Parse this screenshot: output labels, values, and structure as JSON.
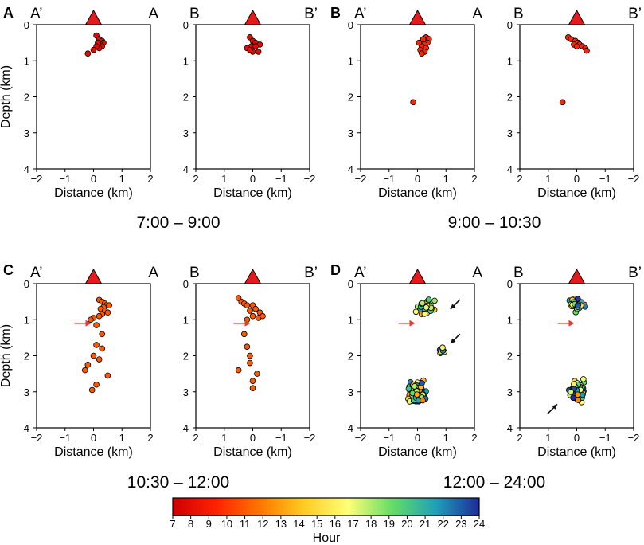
{
  "figure": {
    "colorbar": {
      "label": "Hour",
      "ticks": [
        "7",
        "8",
        "9",
        "10",
        "11",
        "12",
        "13",
        "14",
        "15",
        "16",
        "17",
        "18",
        "19",
        "20",
        "21",
        "22",
        "23",
        "24"
      ],
      "min": 7,
      "max": 24,
      "colors": [
        "#cc0000",
        "#ff2200",
        "#ff7700",
        "#ffcc22",
        "#ffff77",
        "#66dd66",
        "#1fa1b8",
        "#1e2a9a"
      ]
    },
    "marker_colors": {
      "early": "#cc2222",
      "mid": "#e37222",
      "arrow_red": "#e53b2a",
      "arrow_black": "#111111",
      "volcano": "#e41a1c"
    },
    "panels": [
      {
        "label": "A",
        "time_label": "7:00 – 9:00"
      },
      {
        "label": "B",
        "time_label": "9:00 – 10:30"
      },
      {
        "label": "C",
        "time_label": "10:30 – 12:00"
      },
      {
        "label": "D",
        "time_label": "12:00 – 24:00"
      }
    ],
    "sections": {
      "left": {
        "left": "A’",
        "right": "A",
        "xticks": [
          "−2",
          "−1",
          "0",
          "1",
          "2"
        ]
      },
      "right": {
        "left": "B",
        "right": "B’",
        "xticks": [
          "2",
          "1",
          "0",
          "−1",
          "−2"
        ]
      }
    },
    "yticks": [
      "0",
      "1",
      "2",
      "3",
      "4"
    ],
    "xlabel": "Distance (km)",
    "ylabel": "Depth (km)"
  },
  "chart_data": {
    "type": "scatter",
    "x_unit": "km (distance along profile)",
    "y_unit": "km (depth)",
    "xlim": [
      -2,
      2
    ],
    "ylim": [
      0,
      4
    ],
    "color_variable": "hour of day (7–24)",
    "subplots": [
      {
        "panel": "A",
        "section": "A’-A",
        "hour": 8,
        "points": [
          [
            0.1,
            0.3
          ],
          [
            0.2,
            0.4
          ],
          [
            0.3,
            0.45
          ],
          [
            0.35,
            0.5
          ],
          [
            0.25,
            0.55
          ],
          [
            0.15,
            0.5
          ],
          [
            0.3,
            0.6
          ],
          [
            0.2,
            0.65
          ],
          [
            0.1,
            0.6
          ],
          [
            0.0,
            0.7
          ],
          [
            -0.2,
            0.8
          ]
        ]
      },
      {
        "panel": "A",
        "section": "B-B’",
        "hour": 8,
        "points": [
          [
            0.1,
            0.35
          ],
          [
            0.0,
            0.45
          ],
          [
            -0.1,
            0.5
          ],
          [
            -0.25,
            0.55
          ],
          [
            0.05,
            0.6
          ],
          [
            -0.1,
            0.6
          ],
          [
            0.2,
            0.65
          ],
          [
            0.0,
            0.75
          ],
          [
            -0.2,
            0.75
          ],
          [
            0.1,
            0.7
          ]
        ]
      },
      {
        "panel": "B",
        "section": "A’-A",
        "hour": 9.5,
        "points": [
          [
            0.3,
            0.35
          ],
          [
            0.4,
            0.4
          ],
          [
            0.2,
            0.45
          ],
          [
            0.35,
            0.5
          ],
          [
            0.25,
            0.55
          ],
          [
            0.15,
            0.6
          ],
          [
            0.3,
            0.65
          ],
          [
            0.1,
            0.7
          ],
          [
            0.25,
            0.75
          ],
          [
            0.15,
            0.8
          ],
          [
            0.05,
            0.5
          ],
          [
            0.2,
            0.4
          ],
          [
            -0.15,
            2.15
          ]
        ]
      },
      {
        "panel": "B",
        "section": "B-B’",
        "hour": 9.5,
        "points": [
          [
            0.3,
            0.35
          ],
          [
            0.2,
            0.4
          ],
          [
            0.05,
            0.45
          ],
          [
            -0.05,
            0.5
          ],
          [
            -0.1,
            0.55
          ],
          [
            -0.2,
            0.6
          ],
          [
            -0.3,
            0.65
          ],
          [
            -0.35,
            0.72
          ],
          [
            0.1,
            0.55
          ],
          [
            0.0,
            0.6
          ],
          [
            0.5,
            2.15
          ]
        ]
      },
      {
        "panel": "C",
        "section": "A’-A",
        "hour": 11,
        "points": [
          [
            0.2,
            0.45
          ],
          [
            0.3,
            0.5
          ],
          [
            0.4,
            0.55
          ],
          [
            0.45,
            0.6
          ],
          [
            0.35,
            0.65
          ],
          [
            0.55,
            0.6
          ],
          [
            0.25,
            0.7
          ],
          [
            0.4,
            0.75
          ],
          [
            0.5,
            0.8
          ],
          [
            0.3,
            0.85
          ],
          [
            0.2,
            0.9
          ],
          [
            0.0,
            0.95
          ],
          [
            -0.1,
            1.0
          ],
          [
            0.1,
            1.15
          ],
          [
            0.3,
            1.4
          ],
          [
            0.1,
            1.7
          ],
          [
            0.3,
            1.8
          ],
          [
            0.0,
            2.0
          ],
          [
            0.2,
            2.1
          ],
          [
            -0.2,
            2.25
          ],
          [
            -0.3,
            2.4
          ],
          [
            0.5,
            2.55
          ],
          [
            0.1,
            2.8
          ],
          [
            -0.05,
            2.95
          ]
        ]
      },
      {
        "panel": "C",
        "section": "B-B’",
        "hour": 11,
        "points": [
          [
            0.5,
            0.4
          ],
          [
            0.4,
            0.5
          ],
          [
            0.3,
            0.55
          ],
          [
            0.2,
            0.6
          ],
          [
            0.0,
            0.6
          ],
          [
            -0.1,
            0.7
          ],
          [
            -0.25,
            0.8
          ],
          [
            0.1,
            0.75
          ],
          [
            0.0,
            0.9
          ],
          [
            -0.2,
            0.95
          ],
          [
            -0.35,
            0.9
          ],
          [
            0.2,
            1.0
          ],
          [
            0.3,
            1.4
          ],
          [
            0.2,
            1.75
          ],
          [
            0.1,
            2.0
          ],
          [
            0.1,
            2.2
          ],
          [
            0.5,
            2.4
          ],
          [
            -0.15,
            2.5
          ],
          [
            0.0,
            2.7
          ],
          [
            0.0,
            2.9
          ]
        ]
      },
      {
        "panel": "D",
        "section": "A’-A",
        "hour": "12–24",
        "clusters": [
          {
            "description": "upper cluster",
            "center": [
              0.3,
              0.65
            ],
            "spread": [
              0.5,
              0.3
            ],
            "count": 30
          },
          {
            "description": "east cluster",
            "center": [
              0.85,
              1.85
            ],
            "spread": [
              0.15,
              0.12
            ],
            "count": 8
          },
          {
            "description": "deep cluster",
            "center": [
              0.0,
              3.0
            ],
            "spread": [
              0.45,
              0.45
            ],
            "count": 70
          }
        ]
      },
      {
        "panel": "D",
        "section": "B-B’",
        "hour": "12–24",
        "clusters": [
          {
            "description": "upper cluster",
            "center": [
              0.0,
              0.6
            ],
            "spread": [
              0.35,
              0.25
            ],
            "count": 30
          },
          {
            "description": "deep cluster",
            "center": [
              0.0,
              3.0
            ],
            "spread": [
              0.45,
              0.45
            ],
            "count": 70
          }
        ]
      }
    ],
    "annotations": {
      "red_arrows": "point to ~1.1 km depth in panels C and D",
      "black_arrows": "point to clusters in panel D"
    }
  }
}
